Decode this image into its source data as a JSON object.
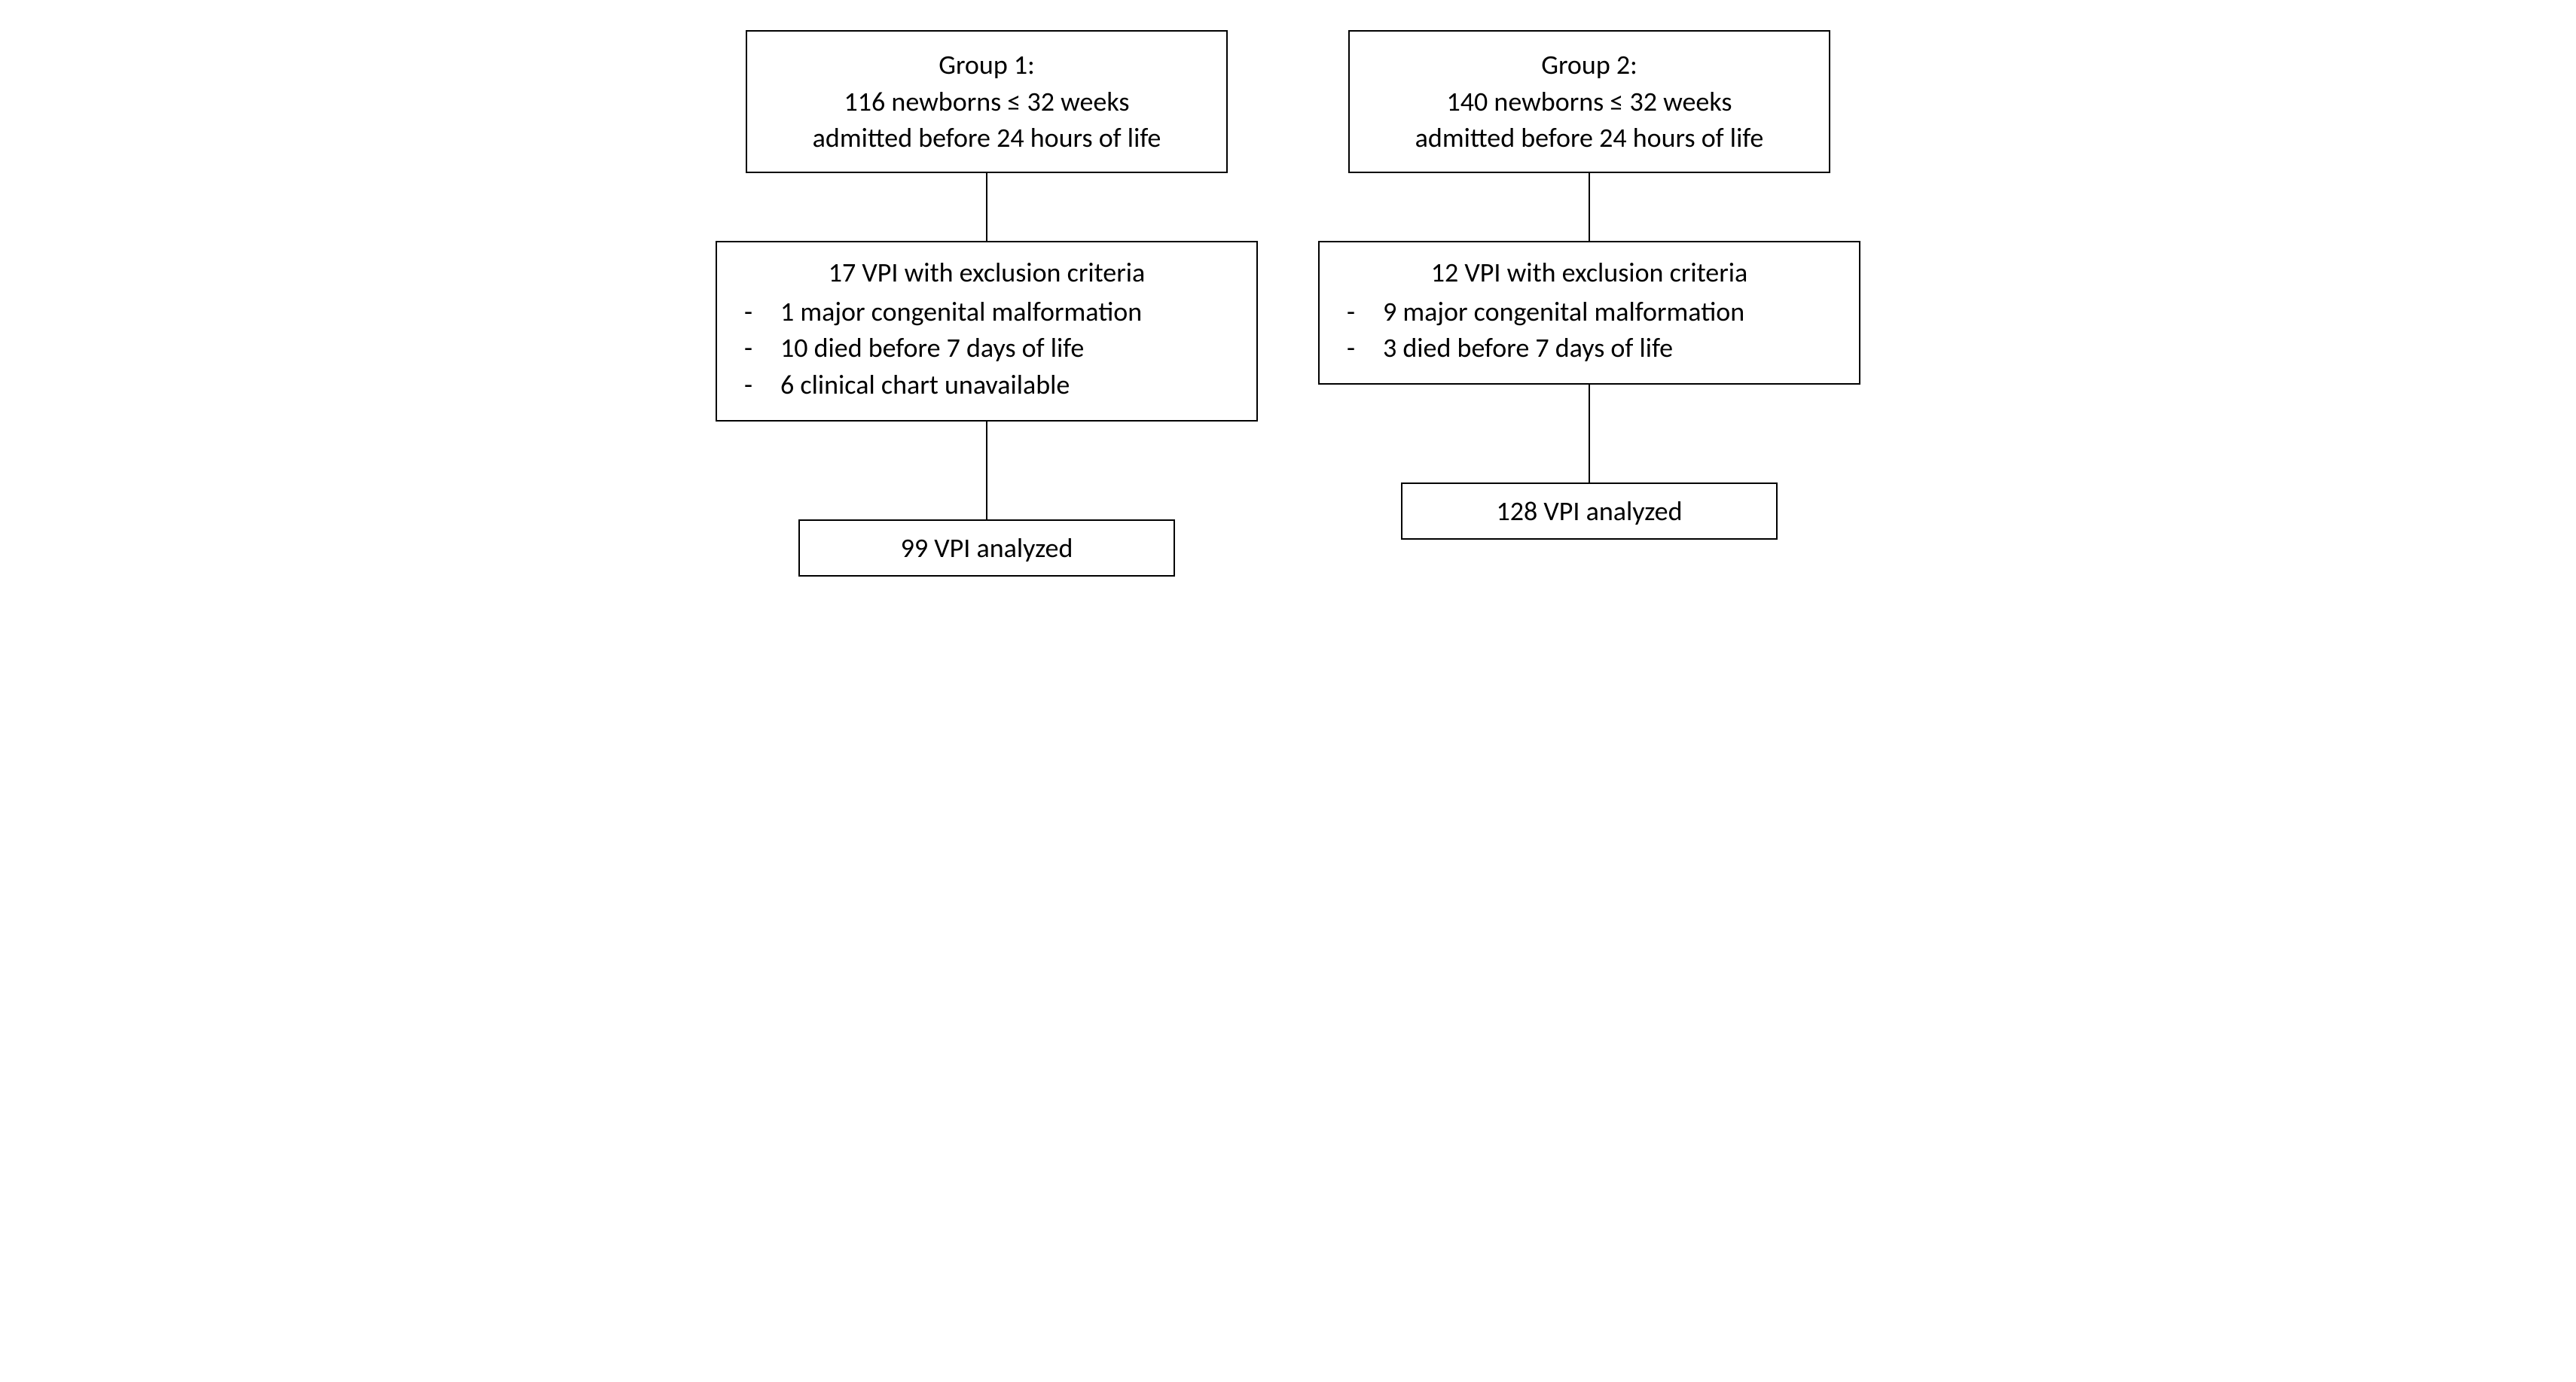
{
  "diagram": {
    "type": "flowchart",
    "background_color": "#ffffff",
    "border_color": "#000000",
    "border_width": 2,
    "text_color": "#000000",
    "font_family": "Calibri",
    "fontsize": 36,
    "columns": [
      {
        "id": "group1",
        "top": {
          "line1": "Group 1:",
          "line2": "116 newborns ≤ 32 weeks",
          "line3": "admitted before 24 hours of life"
        },
        "exclusion": {
          "title": "17 VPI with exclusion criteria",
          "items": [
            "1 major congenital malformation",
            "10 died before 7 days of life",
            "6 clinical chart unavailable"
          ]
        },
        "result": "99 VPI analyzed"
      },
      {
        "id": "group2",
        "top": {
          "line1": "Group 2:",
          "line2": "140 newborns ≤ 32 weeks",
          "line3": "admitted before 24 hours of life"
        },
        "exclusion": {
          "title": "12 VPI with exclusion criteria",
          "items": [
            "9 major congenital malformation",
            "3 died before 7 days of life"
          ]
        },
        "result": "128 VPI analyzed"
      }
    ]
  }
}
